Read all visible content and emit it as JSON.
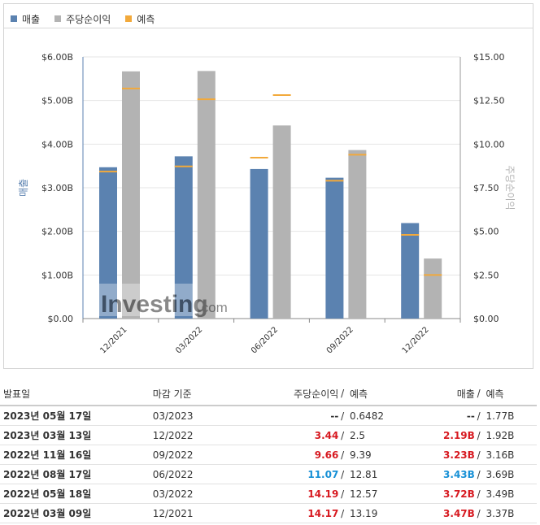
{
  "legend": {
    "revenue": "매출",
    "eps": "주당순이익",
    "forecast": "예측"
  },
  "colors": {
    "revenue": "#5b82b0",
    "eps": "#b3b3b3",
    "forecast": "#f2a93b",
    "up": "#1790d6",
    "down": "#d71920"
  },
  "watermark": {
    "brand": "Investing",
    "suffix": ".com"
  },
  "chart_data": {
    "type": "bar",
    "categories": [
      "12/2021",
      "03/2022",
      "06/2022",
      "09/2022",
      "12/2022"
    ],
    "y_left": {
      "label": "매출",
      "range": [
        0,
        6
      ],
      "ticks": [
        "$0.00",
        "$1.00B",
        "$2.00B",
        "$3.00B",
        "$4.00B",
        "$5.00B",
        "$6.00B"
      ]
    },
    "y_right": {
      "label": "주당순이익",
      "range": [
        0,
        15
      ],
      "ticks": [
        "$0.00",
        "$2.50",
        "$5.00",
        "$7.50",
        "$10.00",
        "$12.50",
        "$15.00"
      ]
    },
    "series": [
      {
        "name": "매출",
        "axis": "left",
        "values": [
          3.47,
          3.72,
          3.43,
          3.23,
          2.19
        ],
        "forecast": [
          3.37,
          3.49,
          3.69,
          3.16,
          1.92
        ]
      },
      {
        "name": "주당순이익",
        "axis": "right",
        "values": [
          14.17,
          14.19,
          11.07,
          9.66,
          3.44
        ],
        "forecast": [
          13.19,
          12.57,
          12.81,
          9.39,
          2.5
        ]
      }
    ],
    "grid": true,
    "legend_position": "top-left"
  },
  "table": {
    "headers": {
      "date": "발표일",
      "period": "마감 기준",
      "eps": "주당순이익",
      "sep": "/",
      "eps_forecast": "예측",
      "revenue": "매출",
      "revenue_forecast": "예측"
    },
    "rows": [
      {
        "date": "2023년 05월 17일",
        "period": "03/2023",
        "eps": "--",
        "eps_forecast": "0.6482",
        "revenue": "--",
        "revenue_forecast": "1.77B",
        "eps_state": "flat",
        "rev_state": "flat"
      },
      {
        "date": "2023년 03월 13일",
        "period": "12/2022",
        "eps": "3.44",
        "eps_forecast": "2.5",
        "revenue": "2.19B",
        "revenue_forecast": "1.92B",
        "eps_state": "down",
        "rev_state": "down"
      },
      {
        "date": "2022년 11월 16일",
        "period": "09/2022",
        "eps": "9.66",
        "eps_forecast": "9.39",
        "revenue": "3.23B",
        "revenue_forecast": "3.16B",
        "eps_state": "down",
        "rev_state": "down"
      },
      {
        "date": "2022년 08월 17일",
        "period": "06/2022",
        "eps": "11.07",
        "eps_forecast": "12.81",
        "revenue": "3.43B",
        "revenue_forecast": "3.69B",
        "eps_state": "up",
        "rev_state": "up"
      },
      {
        "date": "2022년 05월 18일",
        "period": "03/2022",
        "eps": "14.19",
        "eps_forecast": "12.57",
        "revenue": "3.72B",
        "revenue_forecast": "3.49B",
        "eps_state": "down",
        "rev_state": "down"
      },
      {
        "date": "2022년 03월 09일",
        "period": "12/2021",
        "eps": "14.17",
        "eps_forecast": "13.19",
        "revenue": "3.47B",
        "revenue_forecast": "3.37B",
        "eps_state": "down",
        "rev_state": "down"
      }
    ]
  }
}
